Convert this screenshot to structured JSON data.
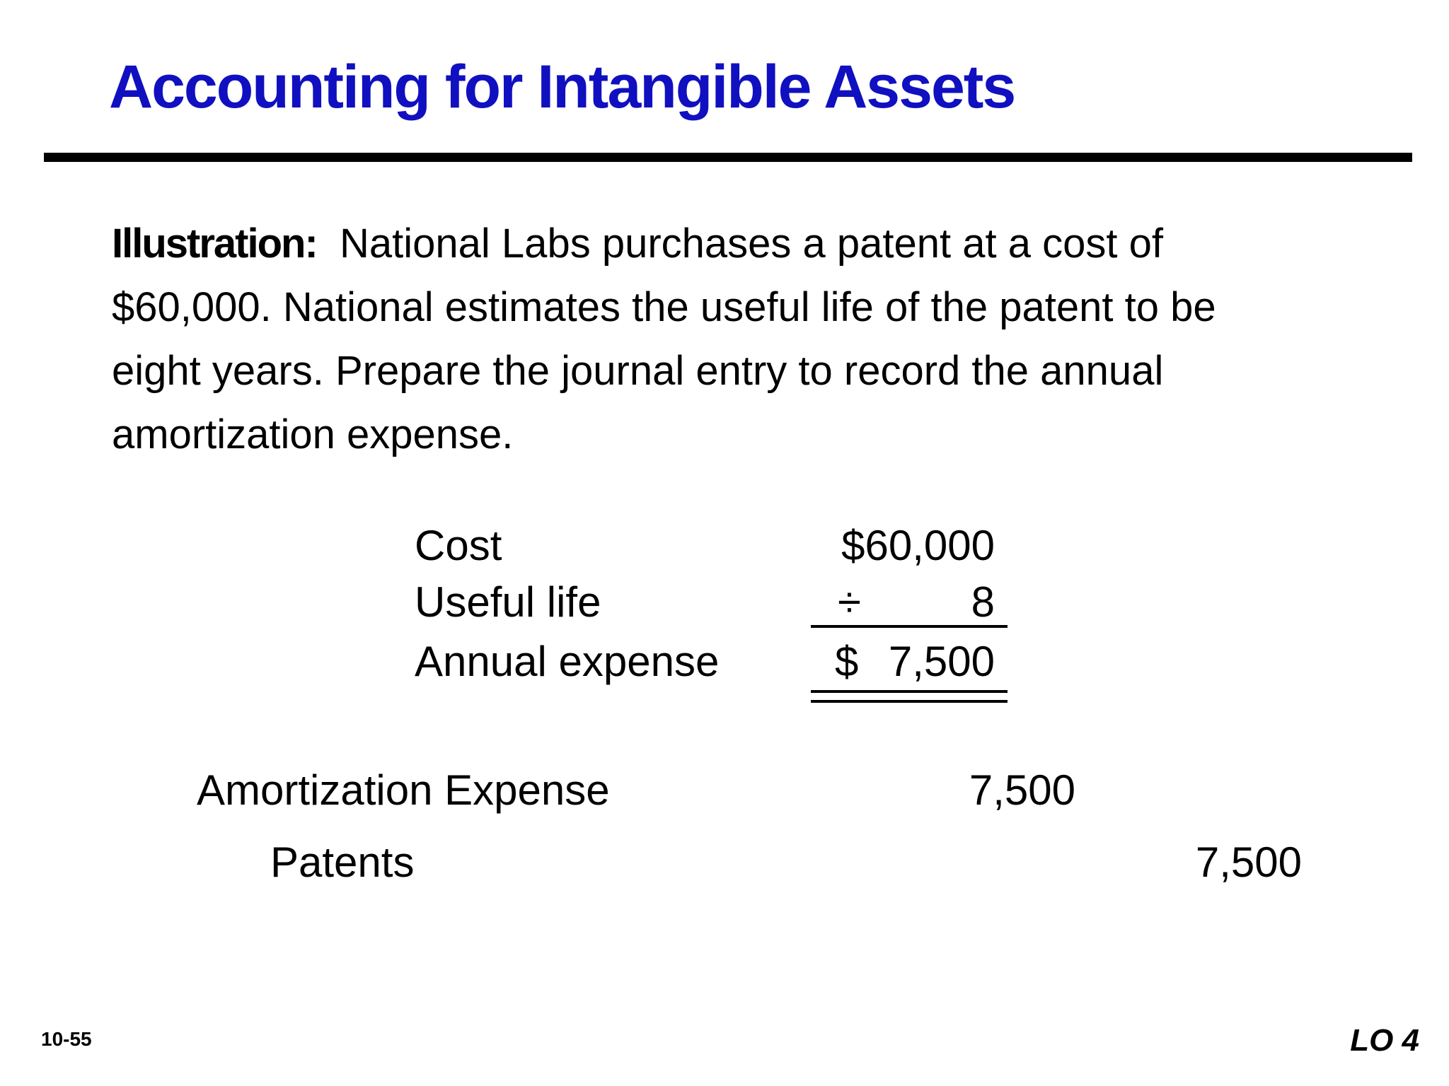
{
  "slide": {
    "title": "Accounting for Intangible Assets",
    "title_color": "#1010c0",
    "illustration": {
      "lead": "Illustration:",
      "lines": [
        "National Labs purchases a patent at a cost of",
        "$60,000.  National estimates the useful life of the patent to be",
        "eight years.  Prepare the journal entry to record the annual",
        "amortization expense."
      ]
    },
    "calculation": {
      "rows": [
        {
          "label": "Cost",
          "value": "$60,000"
        },
        {
          "label": "Useful life",
          "operator": "÷",
          "value": "8"
        },
        {
          "label": "Annual expense",
          "currency": "$",
          "value": "7,500"
        }
      ]
    },
    "journal_entry": {
      "debit": {
        "account": "Amortization Expense",
        "amount": "7,500"
      },
      "credit": {
        "account": "Patents",
        "amount": "7,500"
      }
    },
    "footer": {
      "slide_number": "10-55",
      "learning_objective": "LO 4"
    }
  }
}
